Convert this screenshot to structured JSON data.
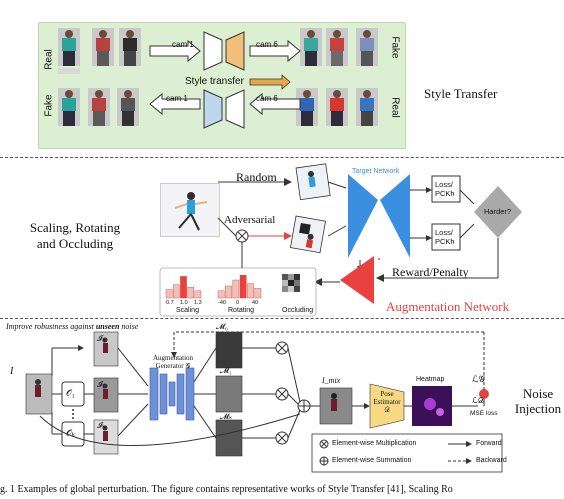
{
  "panel1": {
    "real_label": "Real",
    "fake_label": "Fake",
    "cam1": "cam 1",
    "cam6": "cam 6",
    "center_label": "Style transfer",
    "title": "Style Transfer",
    "colors": {
      "panel_bg": "#dcefd3",
      "gen_top": "#f2bf7a",
      "gen_bottom": "#bcd7ee"
    }
  },
  "panel2": {
    "title_line1": "Scaling, Rotating",
    "title_line2": "and Occluding",
    "random": "Random",
    "adversarial": "Adversarial",
    "target_network": "Target Network",
    "loss1_a": "Loss/",
    "loss1_b": "PCKh",
    "loss2_a": "Loss/",
    "loss2_b": "PCKh",
    "harder": "Harder?",
    "reward": "Reward/Penalty",
    "augmentation_network": "Augmentation Network",
    "hist_scaling_label": "Scaling",
    "hist_rotating_label": "Rotating",
    "hist_occluding_label": "Occluding",
    "scaling_ticks": [
      "0.7",
      "1.0",
      "1.3"
    ],
    "rotating_ticks": [
      "-40",
      "0",
      "40"
    ],
    "scaling_bars": [
      0.35,
      0.55,
      0.9,
      0.45,
      0.3
    ],
    "rotating_bars": [
      0.3,
      0.5,
      0.75,
      0.95,
      0.6,
      0.4
    ],
    "colors": {
      "net": "#3b8fe0",
      "aug": "#e8413f",
      "diamond": "#a9a9a9"
    }
  },
  "panel3": {
    "header": "Improve robustness against unseen noise",
    "header_pre": "Improve robustness against ",
    "header_bold": "unseen",
    "header_post": " noise",
    "I": "I",
    "I0": "𝓘₀",
    "I1": "𝓘₁",
    "Ik": "𝓘ₖ",
    "O1": "𝒪₁",
    "Ok": "𝒪ₖ",
    "aug_gen_1": "Augmentation",
    "aug_gen_2": "Generator 𝒢",
    "M0": "𝓜₀",
    "M1": "𝓜₁",
    "Mk": "𝓜ₖ",
    "Imix": "I_mix",
    "pose1": "Pose",
    "pose2": "Estimator",
    "pose3": "𝒟",
    "heatmap": "Heatmap",
    "LG": "ℒ𝒢",
    "LD": "ℒ𝒟",
    "mse": "MSE loss",
    "title_line1": "Noise",
    "title_line2": "Injection",
    "legend_mult": "Element-wise Multiplication",
    "legend_sum": "Element-wise Summation",
    "legend_fwd": "Forward",
    "legend_bwd": "Backward"
  },
  "caption": "g. 1   Examples of global perturbation. The figure contains representative works of Style Transfer [41], Scaling Ro"
}
